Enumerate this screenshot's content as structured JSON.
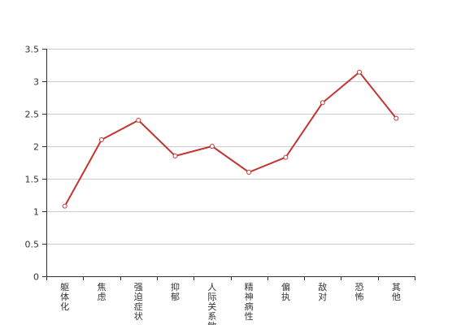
{
  "chart_data": {
    "type": "line",
    "categories": [
      "躯体化",
      "焦虑",
      "强迫症状",
      "抑郁",
      "人际关系敏感",
      "精神病性",
      "偏执",
      "敌对",
      "恐怖",
      "其他"
    ],
    "series": [
      {
        "values": [
          1.08,
          2.1,
          2.4,
          1.85,
          2.0,
          1.6,
          1.83,
          2.67,
          3.14,
          2.43
        ]
      }
    ],
    "ylim": [
      0,
      3.5
    ],
    "yticks": [
      0,
      0.5,
      1,
      1.5,
      2,
      2.5,
      3,
      3.5
    ],
    "grid": true,
    "legend": "none",
    "title": "",
    "xlabel": "",
    "ylabel": ""
  },
  "colors": {
    "line": "#c23531",
    "grid": "#cccccc",
    "axis": "#333333"
  }
}
